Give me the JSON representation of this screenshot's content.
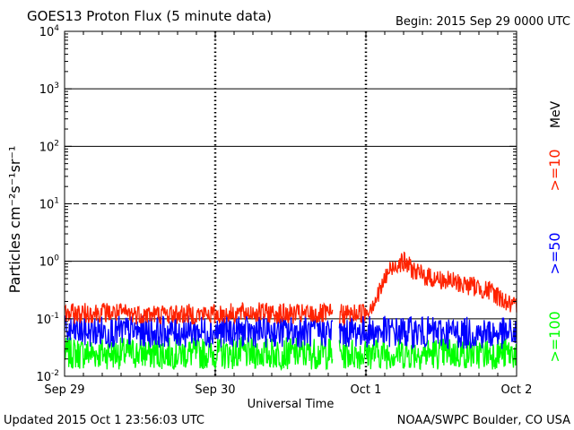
{
  "header": {
    "title": "GOES13 Proton Flux (5 minute data)",
    "begin": "Begin: 2015 Sep 29 0000 UTC"
  },
  "footer": {
    "updated": "Updated 2015 Oct  1 23:56:03 UTC",
    "source": "NOAA/SWPC Boulder, CO USA"
  },
  "chart_data": {
    "type": "line",
    "title": "GOES13 Proton Flux (5 minute data)",
    "xlabel": "Universal Time",
    "ylabel": "Particles cm⁻²s⁻¹sr⁻¹",
    "yscale": "log",
    "ylim": [
      0.01,
      10000
    ],
    "xlim": [
      0,
      3
    ],
    "x_unit": "days since Sep 29 0000 UTC",
    "x_ticks": [
      {
        "x": 0,
        "label": "Sep 29"
      },
      {
        "x": 1,
        "label": "Sep 30"
      },
      {
        "x": 2,
        "label": "Oct 1"
      },
      {
        "x": 3,
        "label": "Oct 2"
      }
    ],
    "y_ticks": [
      {
        "exp": -2,
        "label": "10",
        "sup": "-2"
      },
      {
        "exp": -1,
        "label": "10",
        "sup": "-1"
      },
      {
        "exp": 0,
        "label": "10",
        "sup": "0"
      },
      {
        "exp": 1,
        "label": "10",
        "sup": "1"
      },
      {
        "exp": 2,
        "label": "10",
        "sup": "2"
      },
      {
        "exp": 3,
        "label": "10",
        "sup": "3"
      },
      {
        "exp": 4,
        "label": "10",
        "sup": "4"
      }
    ],
    "threshold_lines": [
      {
        "value": 10,
        "style": "dashed"
      },
      {
        "value": 1,
        "style": "solid"
      },
      {
        "value": 0.1,
        "style": "solid"
      },
      {
        "value": 100,
        "style": "solid"
      },
      {
        "value": 1000,
        "style": "solid"
      }
    ],
    "legend": {
      "placement": "right",
      "unit": "MeV"
    },
    "series": [
      {
        "name": ">=10",
        "color": "#ff2200"
      },
      {
        "name": ">=50",
        "color": "#0000ff"
      },
      {
        "name": ">=100",
        "color": "#00ff00"
      }
    ],
    "data_gap": [
      1.78,
      1.82
    ],
    "envelopes": [
      {
        "series": ">=10",
        "points": [
          [
            0.0,
            0.12
          ],
          [
            0.25,
            0.13
          ],
          [
            0.5,
            0.12
          ],
          [
            0.75,
            0.12
          ],
          [
            1.0,
            0.12
          ],
          [
            1.25,
            0.13
          ],
          [
            1.5,
            0.12
          ],
          [
            1.75,
            0.12
          ],
          [
            1.9,
            0.12
          ],
          [
            2.0,
            0.13
          ],
          [
            2.08,
            0.25
          ],
          [
            2.14,
            0.6
          ],
          [
            2.2,
            0.9
          ],
          [
            2.24,
            1.0
          ],
          [
            2.28,
            0.85
          ],
          [
            2.35,
            0.6
          ],
          [
            2.45,
            0.5
          ],
          [
            2.55,
            0.45
          ],
          [
            2.65,
            0.4
          ],
          [
            2.75,
            0.35
          ],
          [
            2.85,
            0.28
          ],
          [
            2.95,
            0.18
          ],
          [
            3.0,
            0.15
          ]
        ]
      },
      {
        "series": ">=50",
        "points": [
          [
            0.0,
            0.06
          ],
          [
            1.5,
            0.06
          ],
          [
            2.0,
            0.06
          ],
          [
            3.0,
            0.055
          ]
        ]
      },
      {
        "series": ">=100",
        "points": [
          [
            0.0,
            0.025
          ],
          [
            1.5,
            0.025
          ],
          [
            2.0,
            0.025
          ],
          [
            3.0,
            0.025
          ]
        ]
      }
    ]
  }
}
